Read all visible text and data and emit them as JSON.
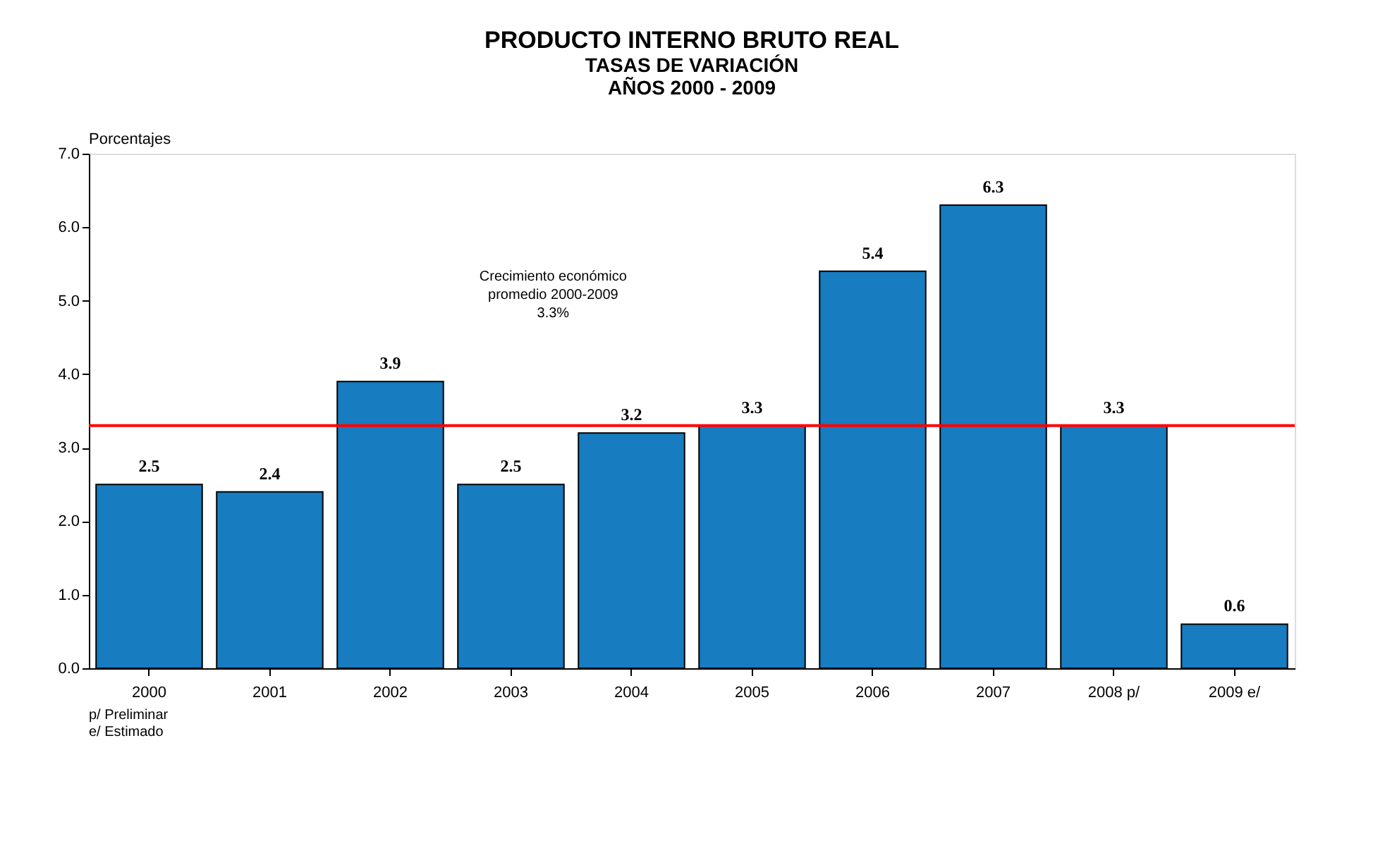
{
  "chart_data": {
    "type": "bar",
    "title": "PRODUCTO INTERNO BRUTO REAL",
    "subtitle": "TASAS DE VARIACIÓN\nAÑOS 2000 - 2009",
    "ylabel": "Porcentajes",
    "categories": [
      "2000",
      "2001",
      "2002",
      "2003",
      "2004",
      "2005",
      "2006",
      "2007",
      "2008 p/",
      "2009 e/"
    ],
    "values": [
      2.5,
      2.4,
      3.9,
      2.5,
      3.2,
      3.3,
      5.4,
      6.3,
      3.3,
      0.6
    ],
    "color": "#177cc0",
    "ylim": [
      0,
      7
    ],
    "yticks": [
      {
        "value": 0,
        "label": "0.0"
      },
      {
        "value": 1,
        "label": "1.0"
      },
      {
        "value": 2,
        "label": "2.0"
      },
      {
        "value": 3,
        "label": "3.0"
      },
      {
        "value": 4,
        "label": "4.0"
      },
      {
        "value": 5,
        "label": "5.0"
      },
      {
        "value": 6,
        "label": "6.0"
      },
      {
        "value": 7,
        "label": "7.0"
      }
    ],
    "data_labels": true,
    "grid": false,
    "ref_lines": [
      {
        "axis": "y",
        "value": 3.3,
        "color": "#ff0000"
      }
    ],
    "annotations": [
      "Crecimiento económico\npromedio 2000-2009\n3.3%",
      "p/ Preliminar",
      "e/ Estimado"
    ]
  }
}
